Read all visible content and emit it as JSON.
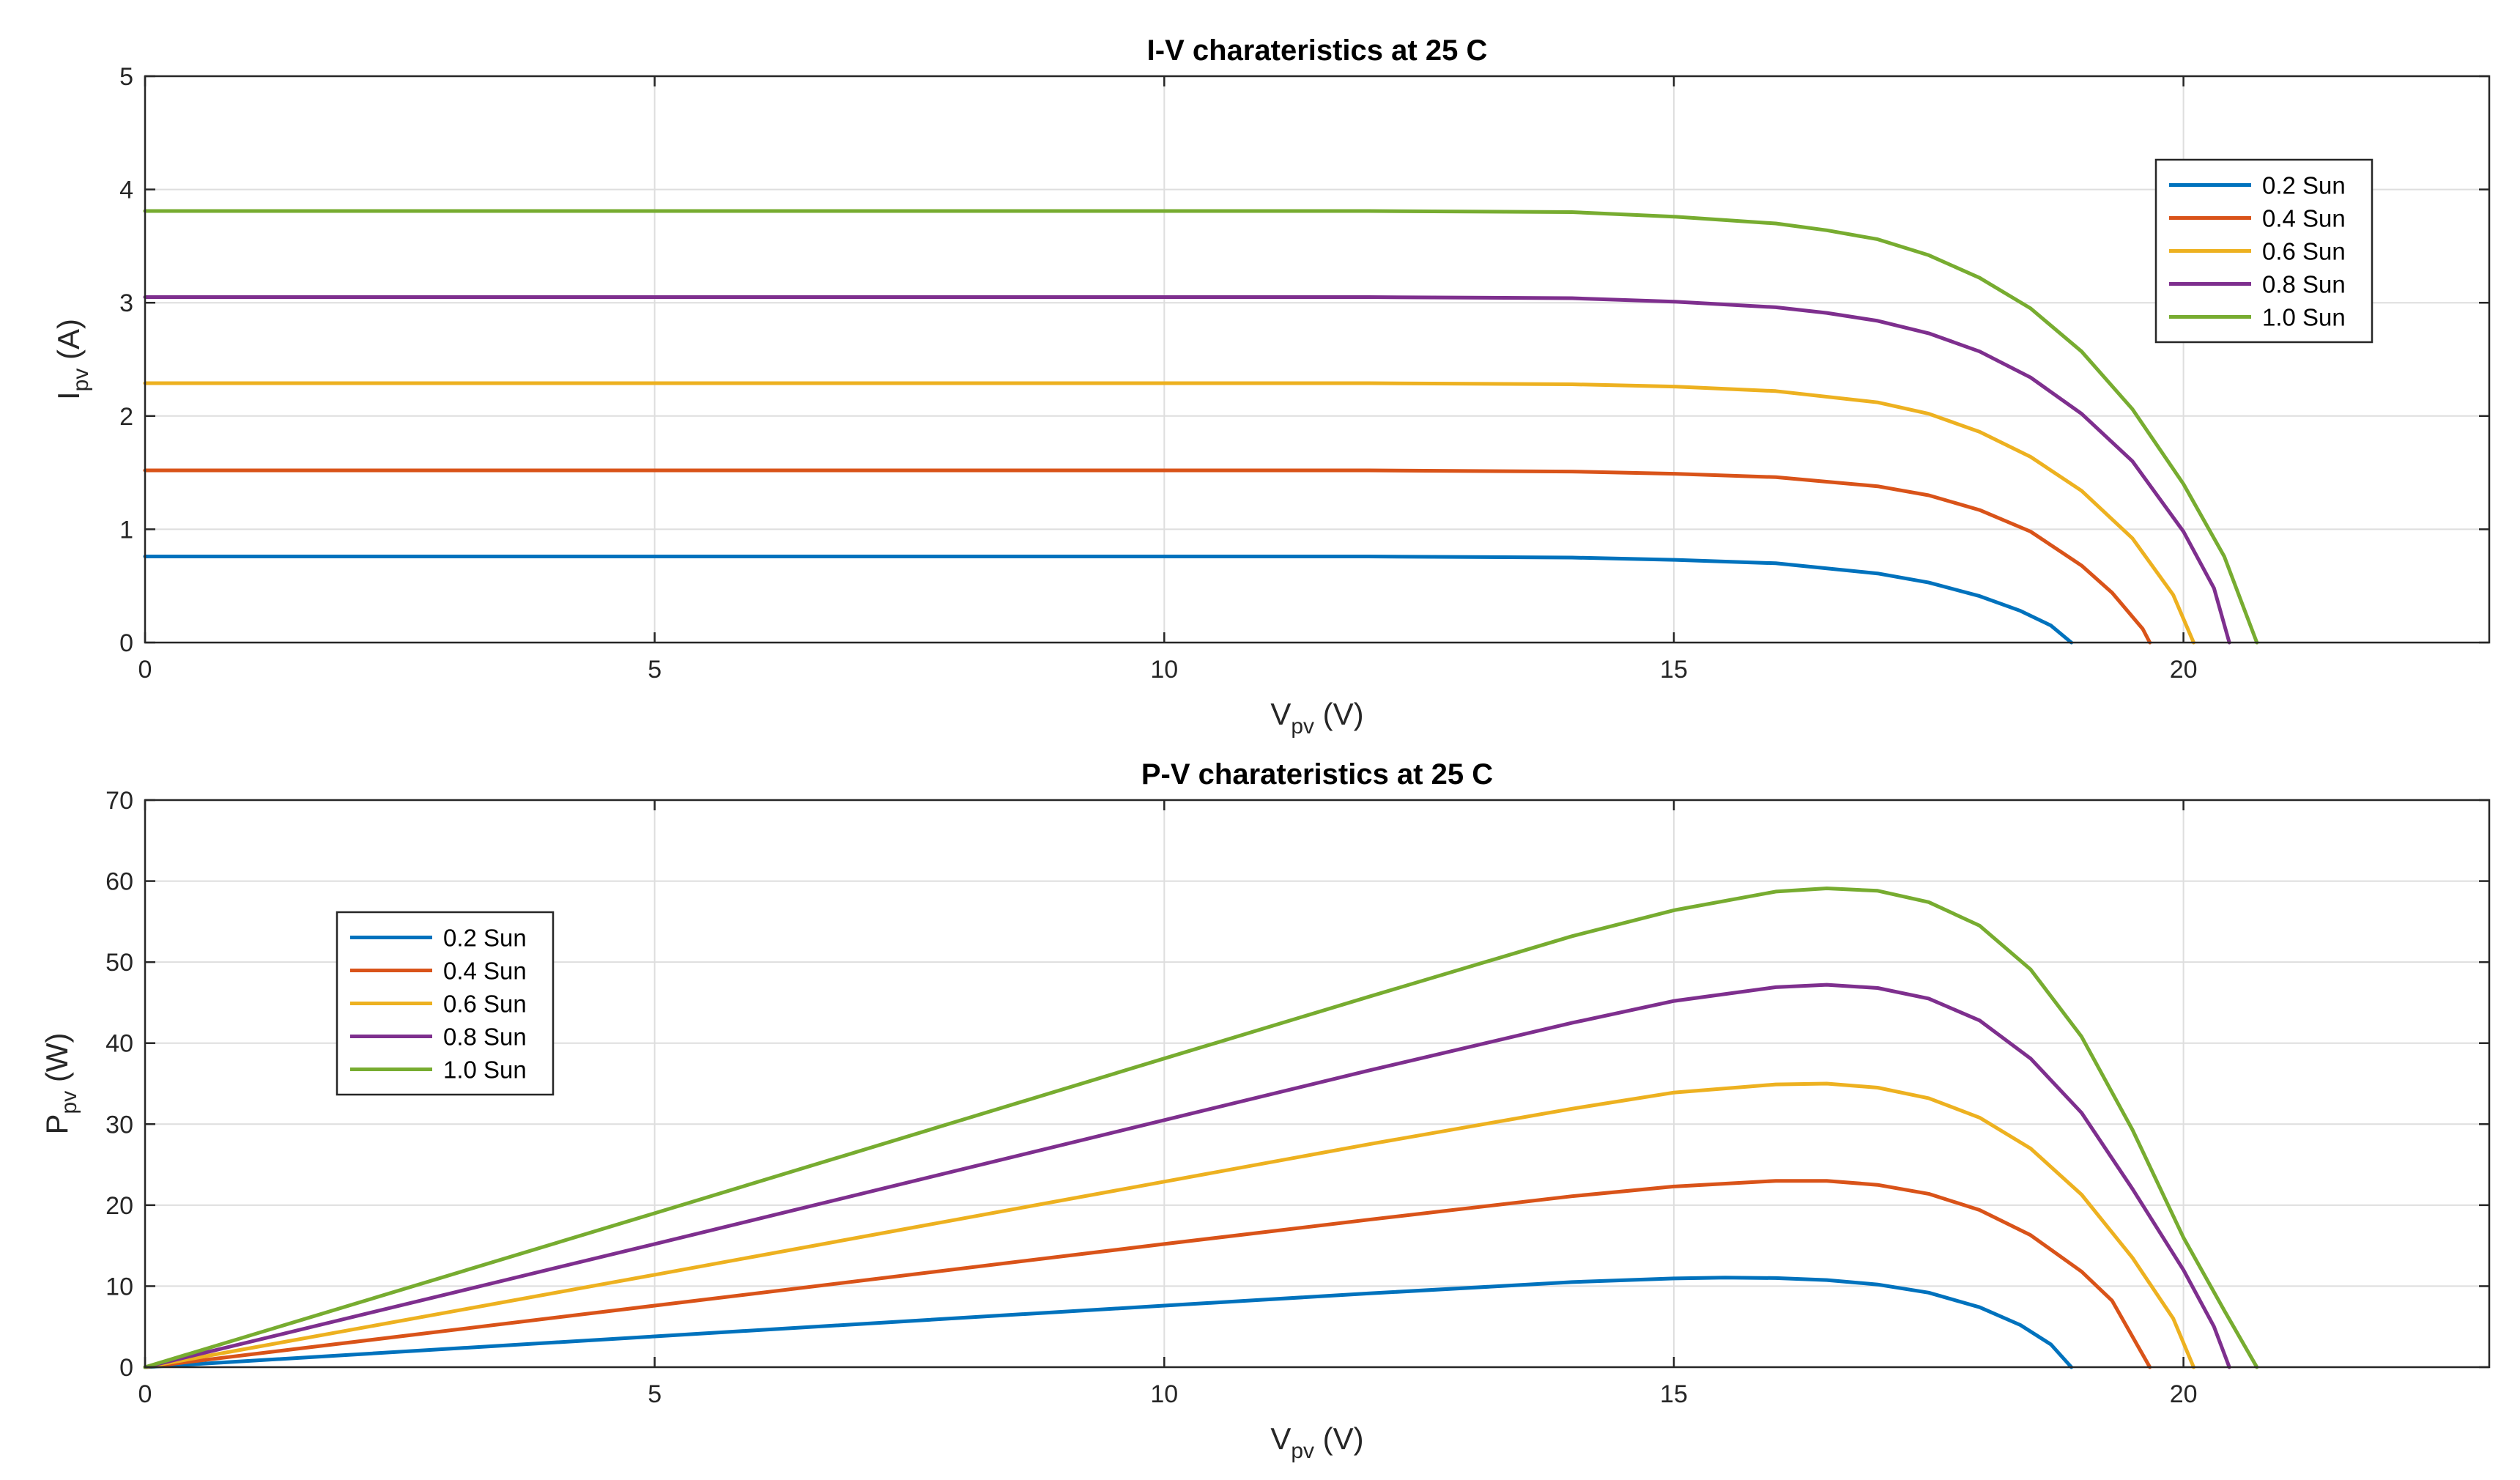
{
  "chart_data": [
    {
      "type": "line",
      "title": "I-V charateristics at 25 C",
      "xlabel": {
        "main": "V",
        "sub": "pv",
        "unit": " (V)"
      },
      "ylabel": {
        "main": "I",
        "sub": "pv",
        "unit": " (A)"
      },
      "xlim": [
        0,
        23
      ],
      "ylim": [
        0,
        5
      ],
      "xticks": [
        0,
        5,
        10,
        15,
        20
      ],
      "yticks": [
        0,
        1,
        2,
        3,
        4,
        5
      ],
      "grid": true,
      "legend": "top-right",
      "series": [
        {
          "name": "0.2 Sun",
          "color": "#0072BD",
          "x": [
            0,
            5,
            10,
            12,
            14,
            15,
            16,
            17,
            17.5,
            18,
            18.4,
            18.7,
            18.9
          ],
          "y": [
            0.76,
            0.76,
            0.76,
            0.76,
            0.75,
            0.73,
            0.7,
            0.61,
            0.53,
            0.41,
            0.28,
            0.15,
            0
          ]
        },
        {
          "name": "0.4 Sun",
          "color": "#D95319",
          "x": [
            0,
            5,
            10,
            12,
            14,
            15,
            16,
            17,
            17.5,
            18,
            18.5,
            19,
            19.3,
            19.6,
            19.67
          ],
          "y": [
            1.52,
            1.52,
            1.52,
            1.52,
            1.51,
            1.49,
            1.46,
            1.38,
            1.3,
            1.17,
            0.98,
            0.68,
            0.44,
            0.12,
            0
          ]
        },
        {
          "name": "0.6 Sun",
          "color": "#EDB120",
          "x": [
            0,
            5,
            10,
            12,
            14,
            15,
            16,
            17,
            17.5,
            18,
            18.5,
            19,
            19.5,
            19.9,
            20.1
          ],
          "y": [
            2.29,
            2.29,
            2.29,
            2.29,
            2.28,
            2.26,
            2.22,
            2.12,
            2.02,
            1.86,
            1.64,
            1.34,
            0.92,
            0.42,
            0
          ]
        },
        {
          "name": "0.8 Sun",
          "color": "#7E2F8E",
          "x": [
            0,
            5,
            10,
            12,
            14,
            15,
            16,
            16.5,
            17,
            17.5,
            18,
            18.5,
            19,
            19.5,
            20,
            20.3,
            20.45
          ],
          "y": [
            3.05,
            3.05,
            3.05,
            3.05,
            3.04,
            3.01,
            2.96,
            2.91,
            2.84,
            2.73,
            2.57,
            2.34,
            2.02,
            1.6,
            0.98,
            0.48,
            0
          ]
        },
        {
          "name": "1.0 Sun",
          "color": "#77AC30",
          "x": [
            0,
            5,
            10,
            12,
            14,
            15,
            16,
            16.5,
            17,
            17.5,
            18,
            18.5,
            19,
            19.5,
            20,
            20.4,
            20.72
          ],
          "y": [
            3.81,
            3.81,
            3.81,
            3.81,
            3.8,
            3.76,
            3.7,
            3.64,
            3.56,
            3.42,
            3.22,
            2.95,
            2.57,
            2.06,
            1.4,
            0.76,
            0
          ]
        }
      ]
    },
    {
      "type": "line",
      "title": "P-V charateristics at 25 C",
      "xlabel": {
        "main": "V",
        "sub": "pv",
        "unit": " (V)"
      },
      "ylabel": {
        "main": "P",
        "sub": "pv",
        "unit": " (W)"
      },
      "xlim": [
        0,
        23
      ],
      "ylim": [
        0,
        70
      ],
      "xticks": [
        0,
        5,
        10,
        15,
        20
      ],
      "yticks": [
        0,
        10,
        20,
        30,
        40,
        50,
        60,
        70
      ],
      "grid": true,
      "legend": "top-left",
      "series": [
        {
          "name": "0.2 Sun",
          "color": "#0072BD",
          "x": [
            0,
            5,
            10,
            12,
            14,
            15,
            15.5,
            16,
            16.5,
            17,
            17.5,
            18,
            18.4,
            18.7,
            18.9
          ],
          "y": [
            0,
            3.8,
            7.6,
            9.1,
            10.5,
            10.95,
            11.05,
            11.0,
            10.75,
            10.2,
            9.2,
            7.4,
            5.2,
            2.8,
            0
          ]
        },
        {
          "name": "0.4 Sun",
          "color": "#D95319",
          "x": [
            0,
            5,
            10,
            12,
            14,
            15,
            16,
            16.5,
            17,
            17.5,
            18,
            18.5,
            19,
            19.3,
            19.67
          ],
          "y": [
            0,
            7.6,
            15.2,
            18.2,
            21.1,
            22.3,
            23.0,
            23.0,
            22.5,
            21.4,
            19.4,
            16.3,
            11.8,
            8.2,
            0
          ]
        },
        {
          "name": "0.6 Sun",
          "color": "#EDB120",
          "x": [
            0,
            5,
            10,
            12,
            14,
            15,
            16,
            16.5,
            17,
            17.5,
            18,
            18.5,
            19,
            19.5,
            19.9,
            20.1
          ],
          "y": [
            0,
            11.4,
            22.9,
            27.5,
            31.9,
            33.9,
            34.9,
            35.0,
            34.5,
            33.2,
            30.8,
            27.0,
            21.3,
            13.5,
            6.0,
            0
          ]
        },
        {
          "name": "0.8 Sun",
          "color": "#7E2F8E",
          "x": [
            0,
            5,
            10,
            12,
            14,
            15,
            16,
            16.5,
            17,
            17.5,
            18,
            18.5,
            19,
            19.5,
            20,
            20.3,
            20.45
          ],
          "y": [
            0,
            15.2,
            30.5,
            36.6,
            42.5,
            45.2,
            46.9,
            47.2,
            46.8,
            45.5,
            42.8,
            38.1,
            31.4,
            22.0,
            12.0,
            5.0,
            0
          ]
        },
        {
          "name": "1.0 Sun",
          "color": "#77AC30",
          "x": [
            0,
            5,
            10,
            12,
            14,
            15,
            16,
            16.5,
            17,
            17.5,
            18,
            18.5,
            19,
            19.5,
            20,
            20.4,
            20.72
          ],
          "y": [
            0,
            19.0,
            38.1,
            45.7,
            53.2,
            56.4,
            58.7,
            59.1,
            58.8,
            57.4,
            54.5,
            49.1,
            40.8,
            29.3,
            16.0,
            7.0,
            0
          ]
        }
      ]
    }
  ]
}
